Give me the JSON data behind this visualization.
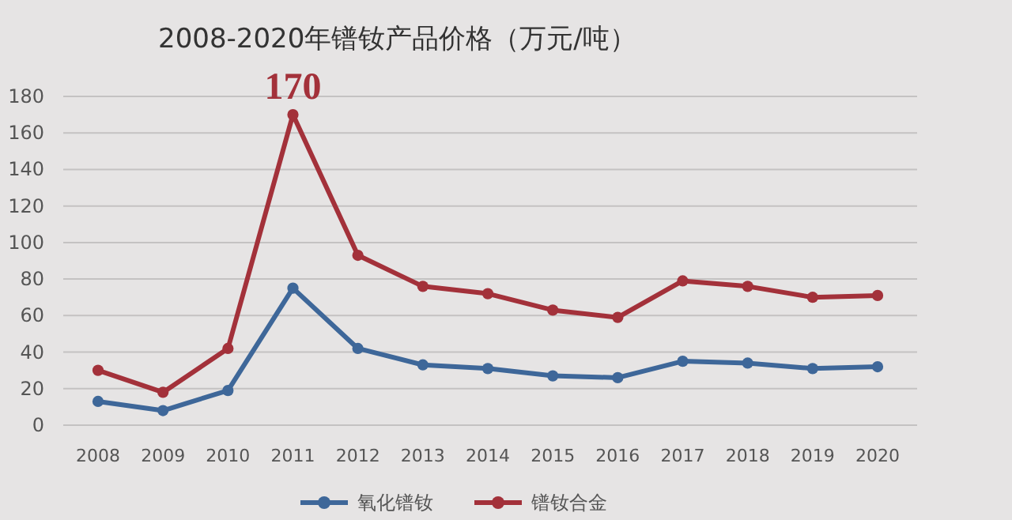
{
  "chart_data": {
    "type": "line",
    "title": "2008-2020年镨钕产品价格（万元/吨）",
    "categories": [
      "2008",
      "2009",
      "2010",
      "2011",
      "2012",
      "2013",
      "2014",
      "2015",
      "2016",
      "2017",
      "2018",
      "2019",
      "2020"
    ],
    "series": [
      {
        "name": "氧化镨钕",
        "color": "#3e6799",
        "values": [
          13,
          8,
          19,
          75,
          42,
          33,
          31,
          27,
          26,
          35,
          34,
          31,
          32
        ]
      },
      {
        "name": "镨钕合金",
        "color": "#a3313a",
        "values": [
          30,
          18,
          42,
          170,
          93,
          76,
          72,
          63,
          59,
          79,
          76,
          70,
          71
        ]
      }
    ],
    "ylim": [
      0,
      180
    ],
    "yticks": [
      0,
      20,
      40,
      60,
      80,
      100,
      120,
      140,
      160,
      180
    ],
    "grid": "y",
    "legend": "bottom",
    "marker": "circle",
    "annotations": [
      {
        "text": "170",
        "x": "2011",
        "y": 170
      }
    ]
  }
}
